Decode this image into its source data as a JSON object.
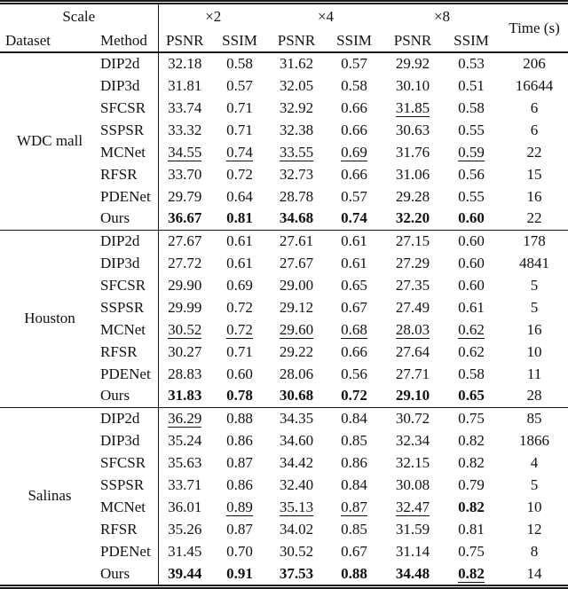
{
  "colors": {
    "background": "#ffffff",
    "text": "#111111",
    "rule": "#1a1a1a"
  },
  "table": {
    "header": {
      "scale": "Scale",
      "dataset": "Dataset",
      "method": "Method",
      "scales": [
        "×2",
        "×4",
        "×8"
      ],
      "psnr": "PSNR",
      "ssim": "SSIM",
      "time": "Time (s)"
    },
    "groups": [
      {
        "dataset": "WDC mall",
        "rows": [
          {
            "method": "DIP2d",
            "values": [
              {
                "t": "32.18",
                "s": ""
              },
              {
                "t": "0.58",
                "s": ""
              },
              {
                "t": "31.62",
                "s": ""
              },
              {
                "t": "0.57",
                "s": ""
              },
              {
                "t": "29.92",
                "s": ""
              },
              {
                "t": "0.53",
                "s": ""
              }
            ],
            "time": "206"
          },
          {
            "method": "DIP3d",
            "values": [
              {
                "t": "31.81",
                "s": ""
              },
              {
                "t": "0.57",
                "s": ""
              },
              {
                "t": "32.05",
                "s": ""
              },
              {
                "t": "0.58",
                "s": ""
              },
              {
                "t": "30.10",
                "s": ""
              },
              {
                "t": "0.51",
                "s": ""
              }
            ],
            "time": "16644"
          },
          {
            "method": "SFCSR",
            "values": [
              {
                "t": "33.74",
                "s": ""
              },
              {
                "t": "0.71",
                "s": ""
              },
              {
                "t": "32.92",
                "s": ""
              },
              {
                "t": "0.66",
                "s": ""
              },
              {
                "t": "31.85",
                "s": "u"
              },
              {
                "t": "0.58",
                "s": ""
              }
            ],
            "time": "6"
          },
          {
            "method": "SSPSR",
            "values": [
              {
                "t": "33.32",
                "s": ""
              },
              {
                "t": "0.71",
                "s": ""
              },
              {
                "t": "32.38",
                "s": ""
              },
              {
                "t": "0.66",
                "s": ""
              },
              {
                "t": "30.63",
                "s": ""
              },
              {
                "t": "0.55",
                "s": ""
              }
            ],
            "time": "6"
          },
          {
            "method": "MCNet",
            "values": [
              {
                "t": "34.55",
                "s": "u"
              },
              {
                "t": "0.74",
                "s": "u"
              },
              {
                "t": "33.55",
                "s": "u"
              },
              {
                "t": "0.69",
                "s": "u"
              },
              {
                "t": "31.76",
                "s": ""
              },
              {
                "t": "0.59",
                "s": "u"
              }
            ],
            "time": "22"
          },
          {
            "method": "RFSR",
            "values": [
              {
                "t": "33.70",
                "s": ""
              },
              {
                "t": "0.72",
                "s": ""
              },
              {
                "t": "32.73",
                "s": ""
              },
              {
                "t": "0.66",
                "s": ""
              },
              {
                "t": "31.06",
                "s": ""
              },
              {
                "t": "0.56",
                "s": ""
              }
            ],
            "time": "15"
          },
          {
            "method": "PDENet",
            "values": [
              {
                "t": "29.79",
                "s": ""
              },
              {
                "t": "0.64",
                "s": ""
              },
              {
                "t": "28.78",
                "s": ""
              },
              {
                "t": "0.57",
                "s": ""
              },
              {
                "t": "29.28",
                "s": ""
              },
              {
                "t": "0.55",
                "s": ""
              }
            ],
            "time": "16"
          },
          {
            "method": "Ours",
            "values": [
              {
                "t": "36.67",
                "s": "b"
              },
              {
                "t": "0.81",
                "s": "b"
              },
              {
                "t": "34.68",
                "s": "b"
              },
              {
                "t": "0.74",
                "s": "b"
              },
              {
                "t": "32.20",
                "s": "b"
              },
              {
                "t": "0.60",
                "s": "b"
              }
            ],
            "time": "22"
          }
        ]
      },
      {
        "dataset": "Houston",
        "rows": [
          {
            "method": "DIP2d",
            "values": [
              {
                "t": "27.67",
                "s": ""
              },
              {
                "t": "0.61",
                "s": ""
              },
              {
                "t": "27.61",
                "s": ""
              },
              {
                "t": "0.61",
                "s": ""
              },
              {
                "t": "27.15",
                "s": ""
              },
              {
                "t": "0.60",
                "s": ""
              }
            ],
            "time": "178"
          },
          {
            "method": "DIP3d",
            "values": [
              {
                "t": "27.72",
                "s": ""
              },
              {
                "t": "0.61",
                "s": ""
              },
              {
                "t": "27.67",
                "s": ""
              },
              {
                "t": "0.61",
                "s": ""
              },
              {
                "t": "27.29",
                "s": ""
              },
              {
                "t": "0.60",
                "s": ""
              }
            ],
            "time": "4841"
          },
          {
            "method": "SFCSR",
            "values": [
              {
                "t": "29.90",
                "s": ""
              },
              {
                "t": "0.69",
                "s": ""
              },
              {
                "t": "29.00",
                "s": ""
              },
              {
                "t": "0.65",
                "s": ""
              },
              {
                "t": "27.35",
                "s": ""
              },
              {
                "t": "0.60",
                "s": ""
              }
            ],
            "time": "5"
          },
          {
            "method": "SSPSR",
            "values": [
              {
                "t": "29.99",
                "s": ""
              },
              {
                "t": "0.72",
                "s": ""
              },
              {
                "t": "29.12",
                "s": ""
              },
              {
                "t": "0.67",
                "s": ""
              },
              {
                "t": "27.49",
                "s": ""
              },
              {
                "t": "0.61",
                "s": ""
              }
            ],
            "time": "5"
          },
          {
            "method": "MCNet",
            "values": [
              {
                "t": "30.52",
                "s": "u"
              },
              {
                "t": "0.72",
                "s": "u"
              },
              {
                "t": "29.60",
                "s": "u"
              },
              {
                "t": "0.68",
                "s": "u"
              },
              {
                "t": "28.03",
                "s": "u"
              },
              {
                "t": "0.62",
                "s": "u"
              }
            ],
            "time": "16"
          },
          {
            "method": "RFSR",
            "values": [
              {
                "t": "30.27",
                "s": ""
              },
              {
                "t": "0.71",
                "s": ""
              },
              {
                "t": "29.22",
                "s": ""
              },
              {
                "t": "0.66",
                "s": ""
              },
              {
                "t": "27.64",
                "s": ""
              },
              {
                "t": "0.62",
                "s": ""
              }
            ],
            "time": "10"
          },
          {
            "method": "PDENet",
            "values": [
              {
                "t": "28.83",
                "s": ""
              },
              {
                "t": "0.60",
                "s": ""
              },
              {
                "t": "28.06",
                "s": ""
              },
              {
                "t": "0.56",
                "s": ""
              },
              {
                "t": "27.71",
                "s": ""
              },
              {
                "t": "0.58",
                "s": ""
              }
            ],
            "time": "11"
          },
          {
            "method": "Ours",
            "values": [
              {
                "t": "31.83",
                "s": "b"
              },
              {
                "t": "0.78",
                "s": "b"
              },
              {
                "t": "30.68",
                "s": "b"
              },
              {
                "t": "0.72",
                "s": "b"
              },
              {
                "t": "29.10",
                "s": "b"
              },
              {
                "t": "0.65",
                "s": "b"
              }
            ],
            "time": "28"
          }
        ]
      },
      {
        "dataset": "Salinas",
        "rows": [
          {
            "method": "DIP2d",
            "values": [
              {
                "t": "36.29",
                "s": "u"
              },
              {
                "t": "0.88",
                "s": ""
              },
              {
                "t": "34.35",
                "s": ""
              },
              {
                "t": "0.84",
                "s": ""
              },
              {
                "t": "30.72",
                "s": ""
              },
              {
                "t": "0.75",
                "s": ""
              }
            ],
            "time": "85"
          },
          {
            "method": "DIP3d",
            "values": [
              {
                "t": "35.24",
                "s": ""
              },
              {
                "t": "0.86",
                "s": ""
              },
              {
                "t": "34.60",
                "s": ""
              },
              {
                "t": "0.85",
                "s": ""
              },
              {
                "t": "32.34",
                "s": ""
              },
              {
                "t": "0.82",
                "s": ""
              }
            ],
            "time": "1866"
          },
          {
            "method": "SFCSR",
            "values": [
              {
                "t": "35.63",
                "s": ""
              },
              {
                "t": "0.87",
                "s": ""
              },
              {
                "t": "34.42",
                "s": ""
              },
              {
                "t": "0.86",
                "s": ""
              },
              {
                "t": "32.15",
                "s": ""
              },
              {
                "t": "0.82",
                "s": ""
              }
            ],
            "time": "4"
          },
          {
            "method": "SSPSR",
            "values": [
              {
                "t": "33.71",
                "s": ""
              },
              {
                "t": "0.86",
                "s": ""
              },
              {
                "t": "32.40",
                "s": ""
              },
              {
                "t": "0.84",
                "s": ""
              },
              {
                "t": "30.08",
                "s": ""
              },
              {
                "t": "0.79",
                "s": ""
              }
            ],
            "time": "5"
          },
          {
            "method": "MCNet",
            "values": [
              {
                "t": "36.01",
                "s": ""
              },
              {
                "t": "0.89",
                "s": "u"
              },
              {
                "t": "35.13",
                "s": "u"
              },
              {
                "t": "0.87",
                "s": "u"
              },
              {
                "t": "32.47",
                "s": "u"
              },
              {
                "t": "0.82",
                "s": "b"
              }
            ],
            "time": "10"
          },
          {
            "method": "RFSR",
            "values": [
              {
                "t": "35.26",
                "s": ""
              },
              {
                "t": "0.87",
                "s": ""
              },
              {
                "t": "34.02",
                "s": ""
              },
              {
                "t": "0.85",
                "s": ""
              },
              {
                "t": "31.59",
                "s": ""
              },
              {
                "t": "0.81",
                "s": ""
              }
            ],
            "time": "12"
          },
          {
            "method": "PDENet",
            "values": [
              {
                "t": "31.45",
                "s": ""
              },
              {
                "t": "0.70",
                "s": ""
              },
              {
                "t": "30.52",
                "s": ""
              },
              {
                "t": "0.67",
                "s": ""
              },
              {
                "t": "31.14",
                "s": ""
              },
              {
                "t": "0.75",
                "s": ""
              }
            ],
            "time": "8"
          },
          {
            "method": "Ours",
            "values": [
              {
                "t": "39.44",
                "s": "b"
              },
              {
                "t": "0.91",
                "s": "b"
              },
              {
                "t": "37.53",
                "s": "b"
              },
              {
                "t": "0.88",
                "s": "b"
              },
              {
                "t": "34.48",
                "s": "b"
              },
              {
                "t": "0.82",
                "s": "bu"
              }
            ],
            "time": "14"
          }
        ]
      }
    ]
  }
}
